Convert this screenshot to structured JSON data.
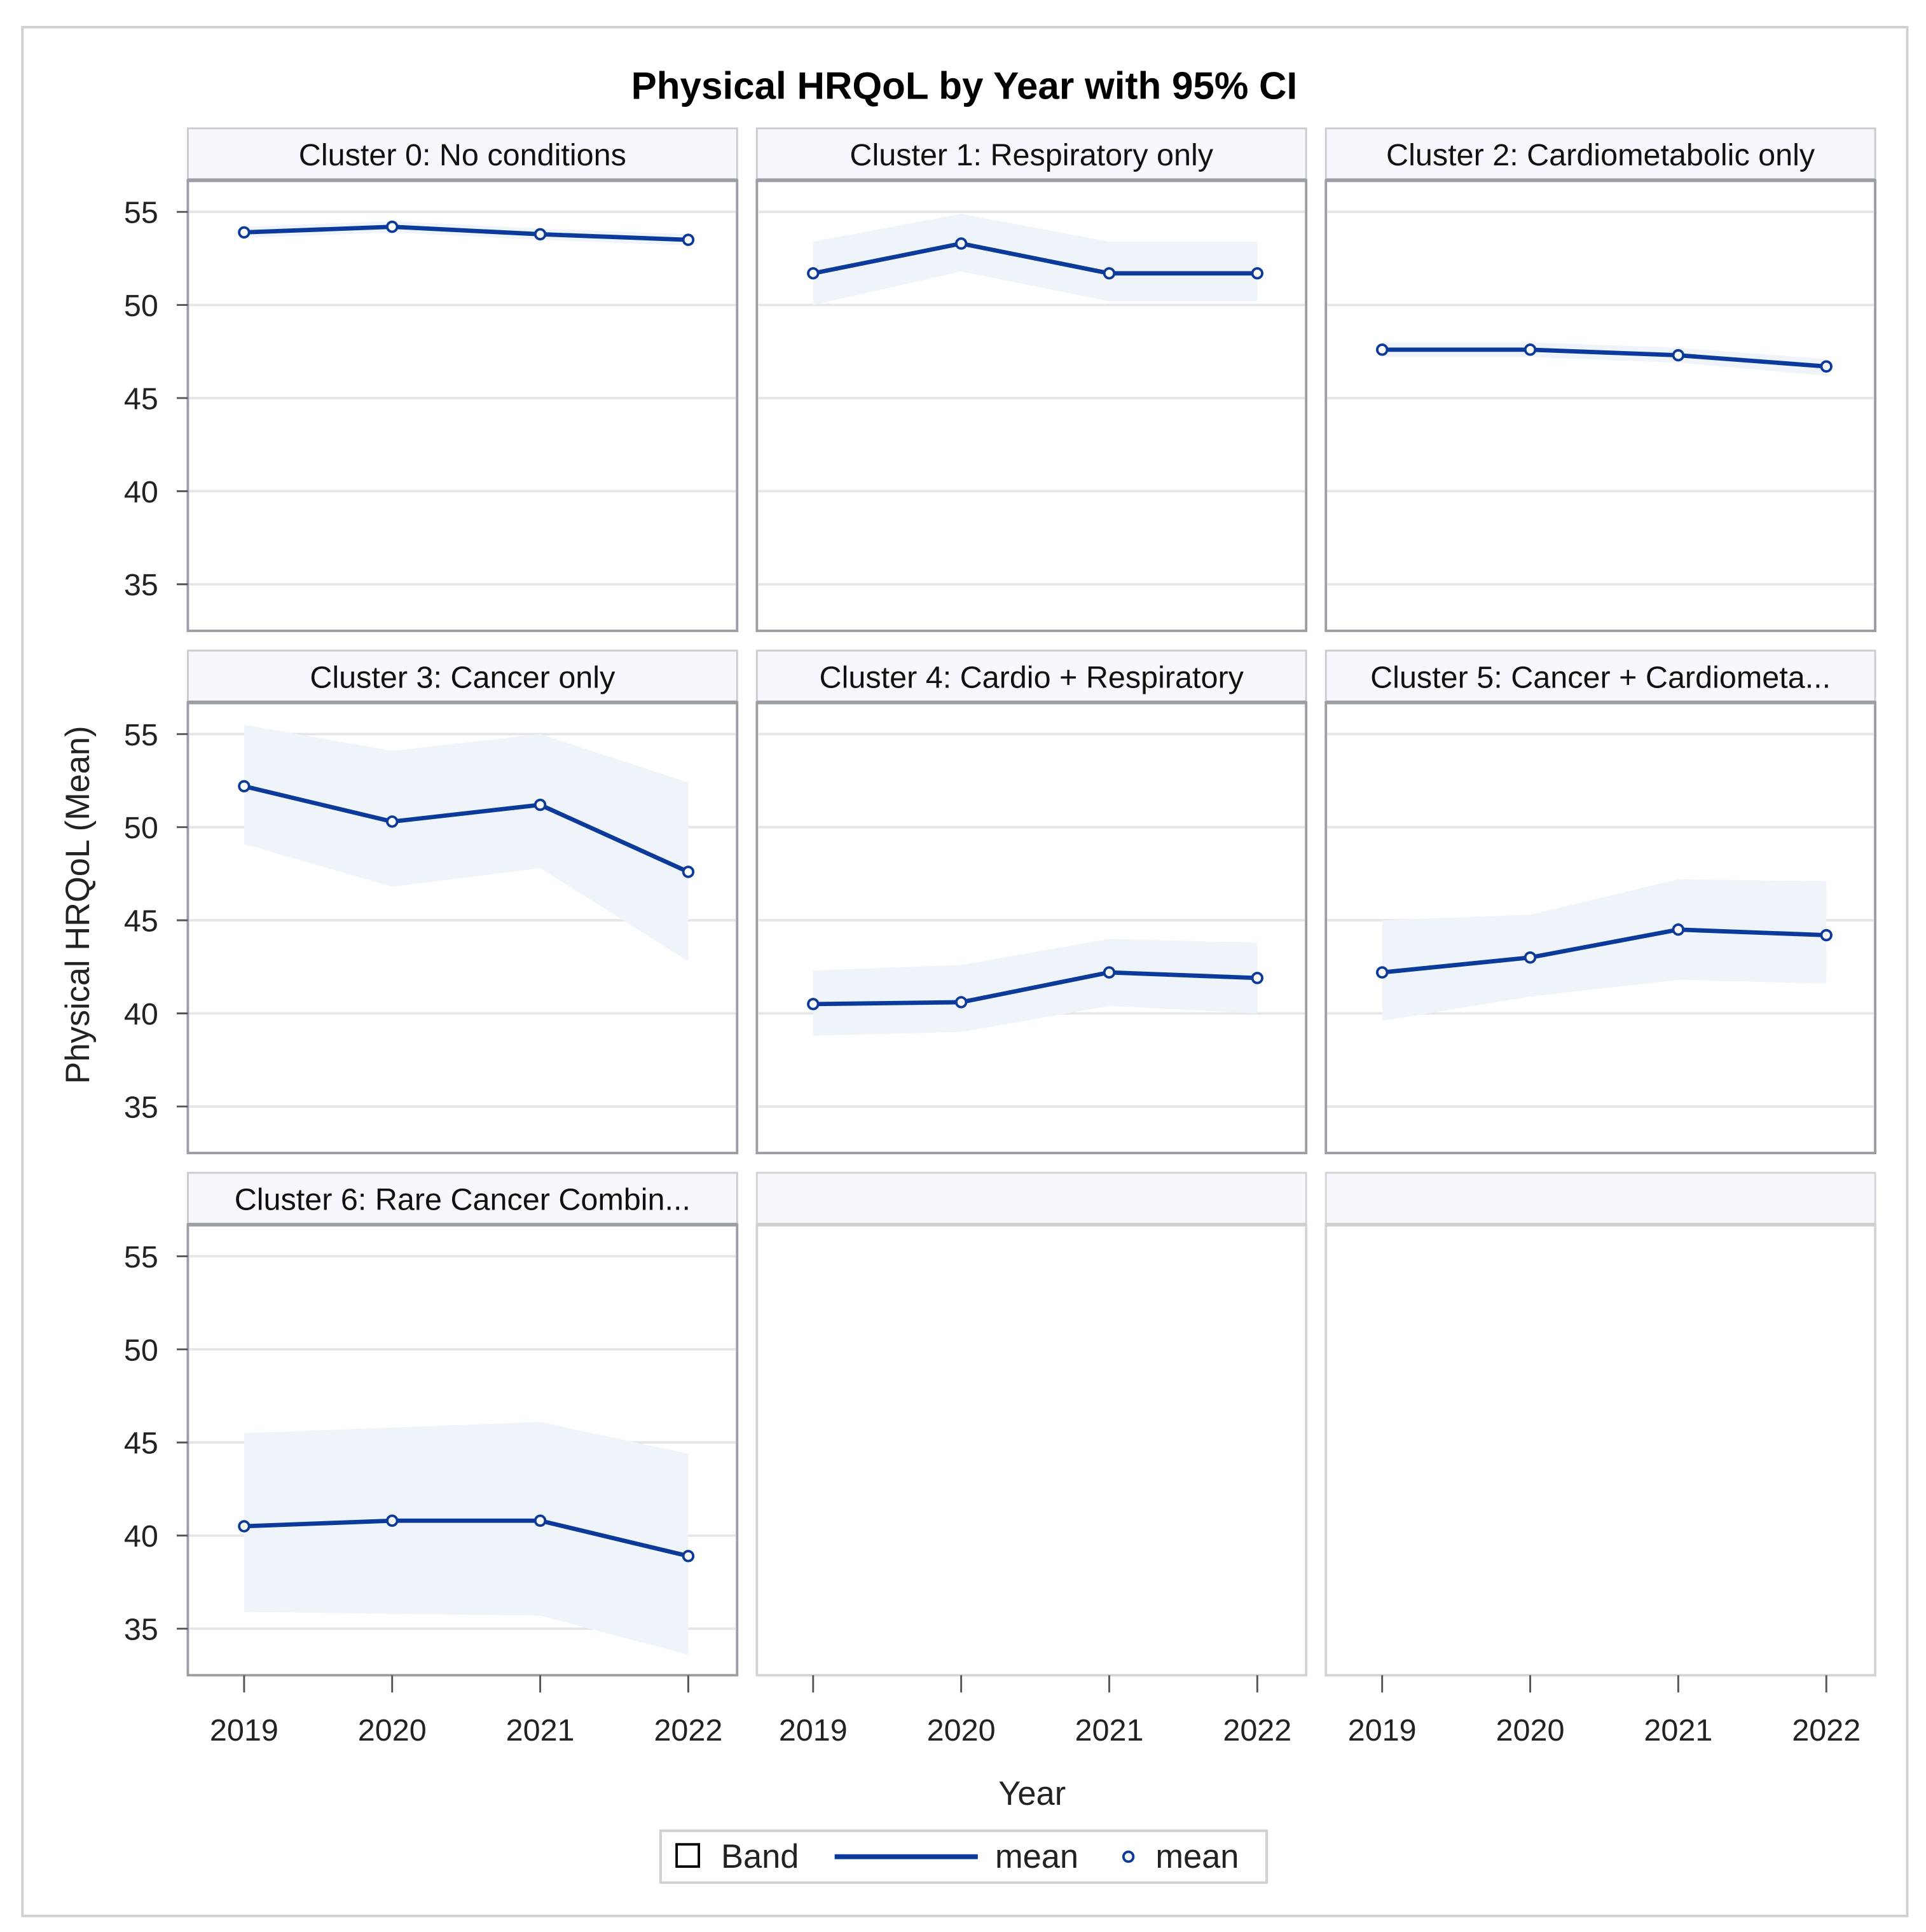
{
  "chart_data": {
    "type": "line",
    "title": "Physical HRQoL by Year with 95% CI",
    "xlabel": "Year",
    "ylabel": "Physical HRQoL (Mean)",
    "x": [
      2019,
      2020,
      2021,
      2022
    ],
    "x_tick_labels": [
      "2019",
      "2020",
      "2021",
      "2022"
    ],
    "y_ticks": [
      35,
      40,
      45,
      50,
      55
    ],
    "y_tick_labels": [
      "35",
      "40",
      "45",
      "50",
      "55"
    ],
    "ylim": [
      32.5,
      56.7
    ],
    "grid": true,
    "legend": {
      "placement": "bottom",
      "entries": [
        "Band",
        "mean",
        "mean"
      ]
    },
    "colors": {
      "line": "#0b3a9b",
      "band": "#eef4fa",
      "grid": "#e6e6e6",
      "header": "#f6f8fd",
      "frame": "#9a9fa6"
    },
    "panels": [
      {
        "name": "Cluster 0: No conditions",
        "mean": [
          53.9,
          54.2,
          53.8,
          53.5
        ],
        "lower": [
          53.6,
          53.9,
          53.5,
          53.2
        ],
        "upper": [
          54.2,
          54.5,
          54.1,
          53.8
        ]
      },
      {
        "name": "Cluster 1: Respiratory only",
        "mean": [
          51.7,
          53.3,
          51.7,
          51.7
        ],
        "lower": [
          50.0,
          51.8,
          50.2,
          50.2
        ],
        "upper": [
          53.4,
          54.9,
          53.4,
          53.4
        ]
      },
      {
        "name": "Cluster 2: Cardiometabolic only",
        "mean": [
          47.6,
          47.6,
          47.3,
          46.7
        ],
        "lower": [
          47.2,
          47.2,
          46.9,
          46.2
        ],
        "upper": [
          48.0,
          48.0,
          47.7,
          47.1
        ]
      },
      {
        "name": "Cluster 3: Cancer only",
        "mean": [
          52.2,
          50.3,
          51.2,
          47.6
        ],
        "lower": [
          49.1,
          46.8,
          47.8,
          42.8
        ],
        "upper": [
          55.5,
          54.1,
          55.0,
          52.4
        ]
      },
      {
        "name": "Cluster 4: Cardio + Respiratory",
        "mean": [
          40.5,
          40.6,
          42.2,
          41.9
        ],
        "lower": [
          38.8,
          39.0,
          40.4,
          40.0
        ],
        "upper": [
          42.3,
          42.6,
          44.0,
          43.8
        ]
      },
      {
        "name": "Cluster 5: Cancer + Cardiometa...",
        "mean": [
          42.2,
          43.0,
          44.5,
          44.2
        ],
        "lower": [
          39.6,
          40.9,
          41.8,
          41.6
        ],
        "upper": [
          45.0,
          45.3,
          47.2,
          47.1
        ]
      },
      {
        "name": "Cluster 6: Rare Cancer Combin...",
        "mean": [
          40.5,
          40.8,
          40.8,
          38.9
        ],
        "lower": [
          35.9,
          35.8,
          35.7,
          33.6
        ],
        "upper": [
          45.5,
          45.8,
          46.1,
          44.4
        ]
      },
      {
        "name": "",
        "mean": [],
        "lower": [],
        "upper": []
      },
      {
        "name": "",
        "mean": [],
        "lower": [],
        "upper": []
      }
    ]
  }
}
